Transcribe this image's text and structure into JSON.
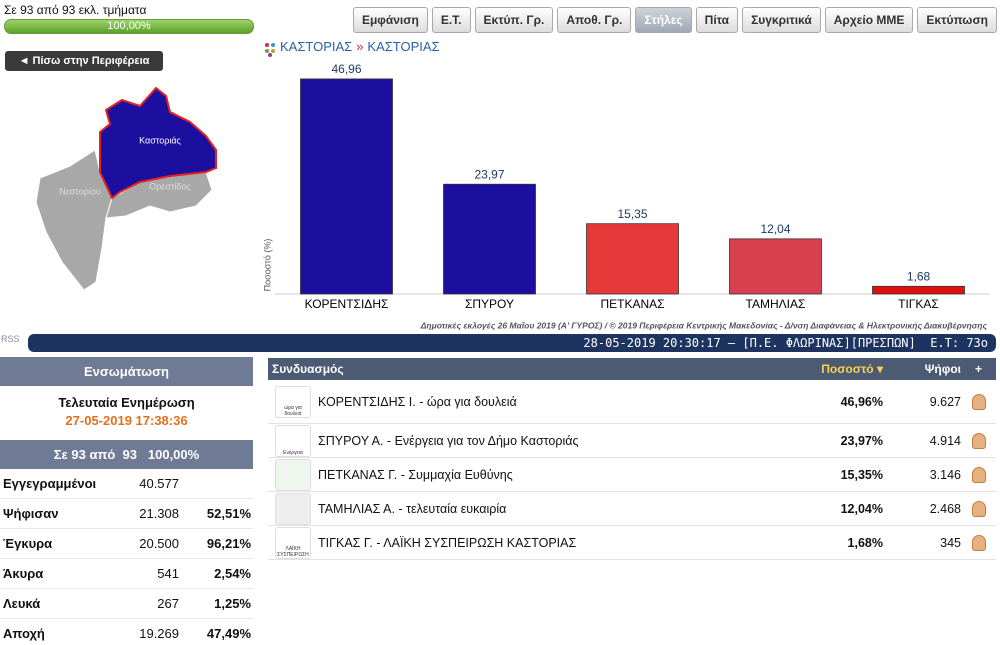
{
  "header": {
    "sections_text": "Σε 93 από 93 εκλ. τμήματα",
    "progress": "100,00%",
    "buttons": [
      "Εμφάνιση",
      "Ε.Τ.",
      "Εκτύπ. Γρ.",
      "Αποθ. Γρ.",
      "Στήλες",
      "Πίτα",
      "Συγκριτικά",
      "Αρχείο ΜΜΕ",
      "Εκτύπωση"
    ]
  },
  "back_button": "Πίσω στην Περιφέρεια",
  "map": {
    "labels": [
      "Καστοριάς",
      "Νεστορίου",
      "Ορεστίδος"
    ]
  },
  "breadcrumb": [
    "ΚΑΣΤΟΡΙΑΣ",
    "»",
    "ΚΑΣΤΟΡΙΑΣ"
  ],
  "chart_data": {
    "type": "bar",
    "y_label": "Ποσοστό (%)",
    "categories": [
      "ΚΟΡΕΝΤΣΙΔΗΣ",
      "ΣΠΥΡΟΥ",
      "ΠΕΤΚΑΝΑΣ",
      "ΤΑΜΗΛΙΑΣ",
      "ΤΙΓΚΑΣ"
    ],
    "values": [
      46.96,
      23.97,
      15.35,
      12.04,
      1.68
    ],
    "value_labels": [
      "46,96",
      "23,97",
      "15,35",
      "12,04",
      "1,68"
    ],
    "colors": [
      "#1c0fa0",
      "#1c0fa0",
      "#e8393a",
      "#d8404f",
      "#e01010"
    ],
    "ylim": [
      0,
      50
    ],
    "source": "Δημοτικές εκλογές 26 Μαΐου 2019 (Α' ΓΥΡΟΣ) / © 2019 Περιφέρεια Κεντρικής Μακεδονίας - Δ/νση Διαφάνειας & Ηλεκτρονικής Διακυβέρνησης"
  },
  "rss": "RSS",
  "ticker": "28-05-2019 20:30:17 – [Π.Ε. ΦΛΩΡΙΝΑΣ][ΠΡΕΣΠΩΝ]  Ε.Τ: 73ο",
  "summary": {
    "title": "Ενσωμάτωση",
    "update_label": "Τελευταία Ενημέρωση",
    "update_time": "27-05-2019 17:38:36",
    "sections": "Σε 93 από  93",
    "sections_percent": "100,00%",
    "rows": [
      {
        "label": "Εγγεγραμμένοι",
        "value": "40.577"
      },
      {
        "label": "Ψήφισαν",
        "value": "21.308",
        "percent": "52,51%"
      },
      {
        "label": "Έγκυρα",
        "value": "20.500",
        "percent": "96,21%"
      },
      {
        "label": "Άκυρα",
        "value": "541",
        "percent": "2,54%"
      },
      {
        "label": "Λευκά",
        "value": "267",
        "percent": "1,25%"
      },
      {
        "label": "Αποχή",
        "value": "19.269",
        "percent": "47,49%"
      }
    ]
  },
  "results": {
    "headers": [
      "Συνδυασμός",
      "Ποσοστό",
      "Ψήφοι",
      "+"
    ],
    "rows": [
      {
        "logo": "ώρα για δουλειά",
        "name": "ΚΟΡΕΝΤΣΙΔΗΣ Ι. - ώρα για δουλειά",
        "percent": "46,96%",
        "votes": "9.627"
      },
      {
        "logo": "Ενέργεια",
        "name": "ΣΠΥΡΟΥ Α. - Ενέργεια για τον Δήμο Καστοριάς",
        "percent": "23,97%",
        "votes": "4.914"
      },
      {
        "name": "ΠΕΤΚΑΝΑΣ Γ. - Συμμαχία Ευθύνης",
        "percent": "15,35%",
        "votes": "3.146"
      },
      {
        "name": "ΤΑΜΗΛΙΑΣ Α. - τελευταία ευκαιρία",
        "percent": "12,04%",
        "votes": "2.468"
      },
      {
        "logo": "ΛΑΪΚΗ ΣΥΣΠΕΙΡΩΣΗ",
        "name": "ΤΙΓΚΑΣ Γ. - ΛΑΪΚΗ ΣΥΣΠΕΙΡΩΣΗ ΚΑΣΤΟΡΙΑΣ",
        "percent": "1,68%",
        "votes": "345"
      }
    ]
  }
}
